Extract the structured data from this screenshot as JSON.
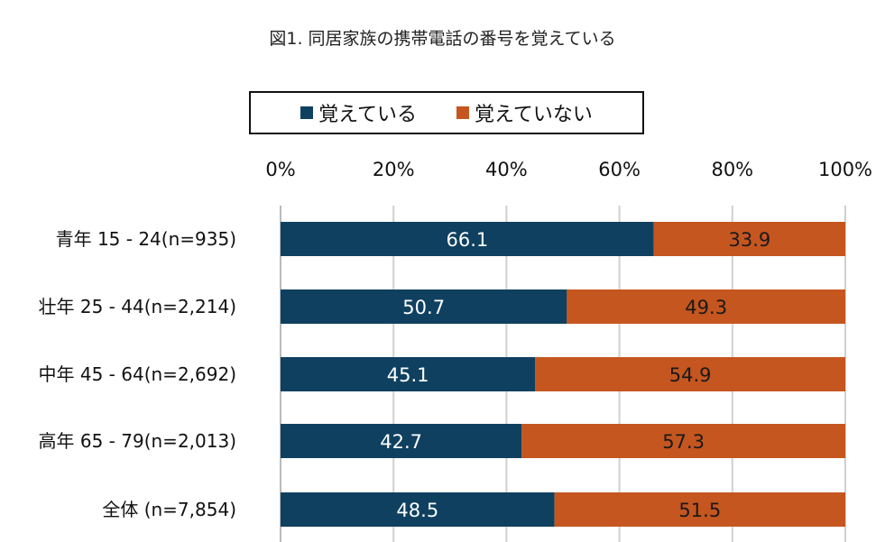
{
  "chart_data": {
    "type": "bar",
    "orientation": "horizontal",
    "stacked": true,
    "title": "図1. 同居家族の携帯電話の番号を覚えている",
    "categories": [
      "青年 15 - 24(n=935)",
      "壮年 25 - 44(n=2,214)",
      "中年 45 - 64(n=2,692)",
      "高年 65 - 79(n=2,013)",
      "全体 (n=7,854)"
    ],
    "series": [
      {
        "name": "覚えている",
        "color": "#0f4060",
        "values": [
          66.1,
          50.7,
          45.1,
          42.7,
          48.5
        ]
      },
      {
        "name": "覚えていない",
        "color": "#c5561f",
        "values": [
          33.9,
          49.3,
          54.9,
          57.3,
          51.5
        ]
      }
    ],
    "xlim": [
      0,
      100
    ],
    "x_ticks": [
      "0%",
      "20%",
      "40%",
      "60%",
      "80%",
      "100%"
    ],
    "x_axis_position": "top",
    "grid": true,
    "legend_placement": "top"
  }
}
